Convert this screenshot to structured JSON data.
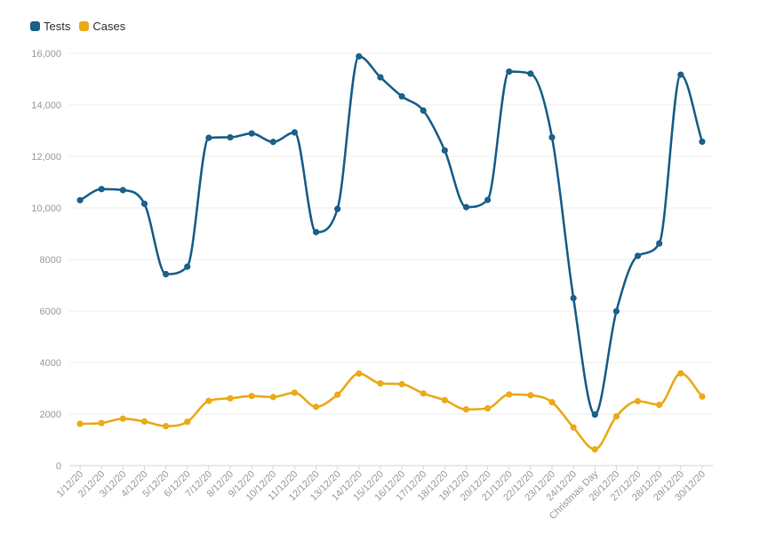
{
  "colors": {
    "tests": "#1b6089",
    "cases": "#e9ab17",
    "grid": "#ececec",
    "axis_text": "#9a9a9a"
  },
  "chart_data": {
    "type": "line",
    "categories": [
      "1/12/20",
      "2/12/20",
      "3/12/20",
      "4/12/20",
      "5/12/20",
      "6/12/20",
      "7/12/20",
      "8/12/20",
      "9/12/20",
      "10/12/20",
      "11/12/20",
      "12/12/20",
      "13/12/20",
      "14/12/20",
      "15/12/20",
      "16/12/20",
      "17/12/20",
      "18/12/20",
      "19/12/20",
      "20/12/20",
      "21/12/20",
      "22/12/20",
      "23/12/20",
      "24/12/20",
      "Christmas Day",
      "26/12/20",
      "27/12/20",
      "28/12/20",
      "29/12/20",
      "30/12/20"
    ],
    "series": [
      {
        "name": "Tests",
        "color": "#1b6089",
        "values": [
          10300,
          10730,
          10690,
          10160,
          7430,
          7720,
          12720,
          12740,
          12890,
          12560,
          12930,
          9060,
          9960,
          15880,
          15070,
          14330,
          13780,
          12230,
          10030,
          10310,
          15290,
          15210,
          12740,
          6500,
          1980,
          5990,
          8140,
          8620,
          15170,
          12570
        ]
      },
      {
        "name": "Cases",
        "color": "#e9ab17",
        "values": [
          1620,
          1650,
          1820,
          1710,
          1530,
          1700,
          2510,
          2610,
          2700,
          2660,
          2830,
          2280,
          2750,
          3570,
          3190,
          3160,
          2800,
          2540,
          2180,
          2220,
          2760,
          2730,
          2460,
          1480,
          630,
          1910,
          2500,
          2360,
          3580,
          2680
        ]
      }
    ],
    "ylim": [
      0,
      16000
    ],
    "yticks": [
      0,
      2000,
      4000,
      6000,
      8000,
      10000,
      12000,
      14000,
      16000
    ],
    "ytick_labels": [
      "0",
      "2000",
      "4000",
      "6000",
      "8000",
      "10,000",
      "12,000",
      "14,000",
      "16,000"
    ],
    "legend": "top-left",
    "grid": true
  }
}
